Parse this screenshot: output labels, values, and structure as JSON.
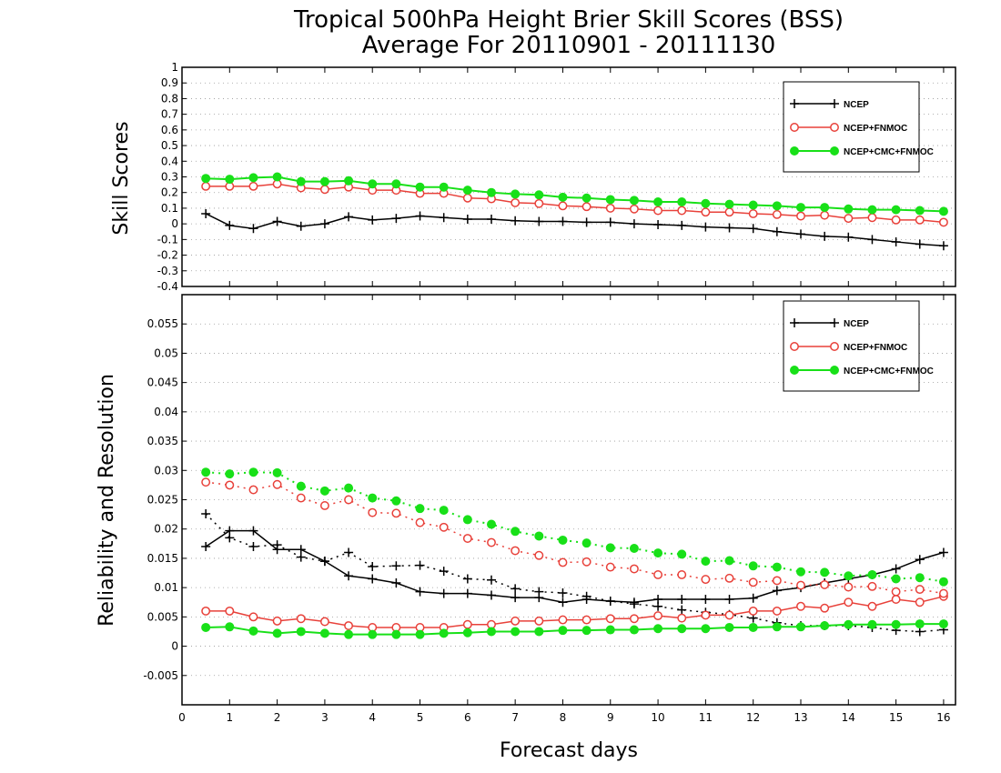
{
  "colors": {
    "ncep": "#000000",
    "ncep_fnmoc": "#e8413a",
    "ncep_cmc_fnmoc": "#18e018",
    "grid": "#999999"
  },
  "chart_data": [
    {
      "type": "line",
      "title": "Tropical 500hPa Height Brier Skill Scores (BSS)",
      "subtitle": "Average For 20110901 - 20111130",
      "xlabel": "Forecast days",
      "ylabel": "Skill Scores",
      "xlim": [
        0,
        16.25
      ],
      "ylim": [
        -0.4,
        1
      ],
      "yticks": [
        "-0.4",
        "-0.3",
        "-0.2",
        "-0.1",
        "0",
        "0.1",
        "0.2",
        "0.3",
        "0.4",
        "0.5",
        "0.6",
        "0.7",
        "0.8",
        "0.9",
        "1"
      ],
      "grid": true,
      "legend_position": "top-right",
      "x": [
        0.5,
        1,
        1.5,
        2,
        2.5,
        3,
        3.5,
        4,
        4.5,
        5,
        5.5,
        6,
        6.5,
        7,
        7.5,
        8,
        8.5,
        9,
        9.5,
        10,
        10.5,
        11,
        11.5,
        12,
        12.5,
        13,
        13.5,
        14,
        14.5,
        15,
        15.5,
        16
      ],
      "series": [
        {
          "name": "NCEP",
          "marker": "plus",
          "style": "solid",
          "values": [
            0.065,
            -0.01,
            -0.03,
            0.015,
            -0.015,
            0.0,
            0.045,
            0.025,
            0.035,
            0.05,
            0.04,
            0.03,
            0.03,
            0.02,
            0.015,
            0.015,
            0.01,
            0.01,
            0.0,
            -0.005,
            -0.01,
            -0.02,
            -0.025,
            -0.03,
            -0.05,
            -0.065,
            -0.08,
            -0.085,
            -0.1,
            -0.115,
            -0.13,
            -0.14
          ]
        },
        {
          "name": "NCEP+FNMOC",
          "marker": "open-circle",
          "style": "solid",
          "values": [
            0.24,
            0.24,
            0.24,
            0.255,
            0.23,
            0.22,
            0.235,
            0.215,
            0.215,
            0.195,
            0.195,
            0.165,
            0.16,
            0.135,
            0.13,
            0.115,
            0.11,
            0.1,
            0.095,
            0.085,
            0.085,
            0.075,
            0.075,
            0.065,
            0.06,
            0.05,
            0.055,
            0.035,
            0.04,
            0.025,
            0.025,
            0.01
          ]
        },
        {
          "name": "NCEP+CMC+FNMOC",
          "marker": "filled-circle",
          "style": "solid",
          "values": [
            0.29,
            0.285,
            0.295,
            0.3,
            0.27,
            0.27,
            0.275,
            0.255,
            0.255,
            0.235,
            0.235,
            0.215,
            0.2,
            0.19,
            0.185,
            0.17,
            0.165,
            0.155,
            0.15,
            0.14,
            0.14,
            0.13,
            0.125,
            0.12,
            0.115,
            0.105,
            0.105,
            0.095,
            0.09,
            0.09,
            0.085,
            0.08
          ]
        }
      ]
    },
    {
      "type": "line",
      "xlabel": "Forecast days",
      "ylabel": "Reliability and Resolution",
      "xlim": [
        0,
        16.25
      ],
      "ylim": [
        -0.01,
        0.06
      ],
      "yticks": [
        "-0.005",
        "0",
        "0.005",
        "0.01",
        "0.015",
        "0.02",
        "0.025",
        "0.03",
        "0.035",
        "0.04",
        "0.045",
        "0.05",
        "0.055"
      ],
      "xticks": [
        "0",
        "1",
        "2",
        "3",
        "4",
        "5",
        "6",
        "7",
        "8",
        "9",
        "10",
        "11",
        "12",
        "13",
        "14",
        "15",
        "16"
      ],
      "grid": true,
      "legend_position": "top-right",
      "x": [
        0.5,
        1,
        1.5,
        2,
        2.5,
        3,
        3.5,
        4,
        4.5,
        5,
        5.5,
        6,
        6.5,
        7,
        7.5,
        8,
        8.5,
        9,
        9.5,
        10,
        10.5,
        11,
        11.5,
        12,
        12.5,
        13,
        13.5,
        14,
        14.5,
        15,
        15.5,
        16
      ],
      "series": [
        {
          "name": "NCEP",
          "kind": "reliability",
          "marker": "plus",
          "style": "solid",
          "values": [
            0.017,
            0.0197,
            0.0197,
            0.0165,
            0.0165,
            0.0145,
            0.012,
            0.0115,
            0.0108,
            0.0093,
            0.009,
            0.009,
            0.0087,
            0.0083,
            0.0083,
            0.0075,
            0.008,
            0.0077,
            0.0075,
            0.008,
            0.008,
            0.008,
            0.008,
            0.0082,
            0.0095,
            0.01,
            0.0108,
            0.0115,
            0.0122,
            0.0132,
            0.0148,
            0.016
          ]
        },
        {
          "name": "NCEP",
          "kind": "resolution",
          "marker": "plus",
          "style": "dotted",
          "values": [
            0.0226,
            0.0185,
            0.017,
            0.0173,
            0.0152,
            0.0145,
            0.016,
            0.0136,
            0.0137,
            0.0138,
            0.0128,
            0.0115,
            0.0113,
            0.0098,
            0.0093,
            0.0091,
            0.0085,
            0.0077,
            0.0072,
            0.0068,
            0.0062,
            0.0058,
            0.0054,
            0.0048,
            0.004,
            0.0035,
            0.0035,
            0.0035,
            0.0032,
            0.0027,
            0.0025,
            0.0028
          ]
        },
        {
          "name": "NCEP+FNMOC",
          "kind": "reliability",
          "marker": "open-circle",
          "style": "solid",
          "values": [
            0.006,
            0.006,
            0.005,
            0.0043,
            0.0047,
            0.0042,
            0.0035,
            0.0032,
            0.0032,
            0.0032,
            0.0032,
            0.0037,
            0.0037,
            0.0043,
            0.0043,
            0.0045,
            0.0045,
            0.0047,
            0.0047,
            0.0052,
            0.0048,
            0.0053,
            0.0053,
            0.006,
            0.006,
            0.0068,
            0.0065,
            0.0075,
            0.0068,
            0.008,
            0.0075,
            0.0085
          ]
        },
        {
          "name": "NCEP+FNMOC",
          "kind": "resolution",
          "marker": "open-circle",
          "style": "dotted",
          "values": [
            0.028,
            0.0275,
            0.0267,
            0.0276,
            0.0253,
            0.024,
            0.025,
            0.0228,
            0.0227,
            0.0211,
            0.0203,
            0.0184,
            0.0177,
            0.0163,
            0.0155,
            0.0143,
            0.0144,
            0.0135,
            0.0132,
            0.0122,
            0.0122,
            0.0114,
            0.0116,
            0.0109,
            0.0112,
            0.0104,
            0.0105,
            0.0101,
            0.0102,
            0.0093,
            0.0097,
            0.009
          ]
        },
        {
          "name": "NCEP+CMC+FNMOC",
          "kind": "reliability",
          "marker": "filled-circle",
          "style": "solid",
          "values": [
            0.0032,
            0.0033,
            0.0026,
            0.0022,
            0.0025,
            0.0022,
            0.002,
            0.002,
            0.002,
            0.002,
            0.0022,
            0.0023,
            0.0025,
            0.0025,
            0.0025,
            0.0027,
            0.0027,
            0.0028,
            0.0028,
            0.003,
            0.003,
            0.003,
            0.0032,
            0.0032,
            0.0033,
            0.0033,
            0.0035,
            0.0037,
            0.0037,
            0.0037,
            0.0038,
            0.0038
          ]
        },
        {
          "name": "NCEP+CMC+FNMOC",
          "kind": "resolution",
          "marker": "filled-circle",
          "style": "dotted",
          "values": [
            0.0297,
            0.0294,
            0.0297,
            0.0296,
            0.0273,
            0.0265,
            0.027,
            0.0253,
            0.0248,
            0.0235,
            0.0232,
            0.0216,
            0.0208,
            0.0196,
            0.0188,
            0.0181,
            0.0176,
            0.0168,
            0.0167,
            0.0159,
            0.0157,
            0.0145,
            0.0146,
            0.0137,
            0.0135,
            0.0127,
            0.0126,
            0.012,
            0.0122,
            0.0115,
            0.0117,
            0.011
          ]
        }
      ]
    }
  ]
}
